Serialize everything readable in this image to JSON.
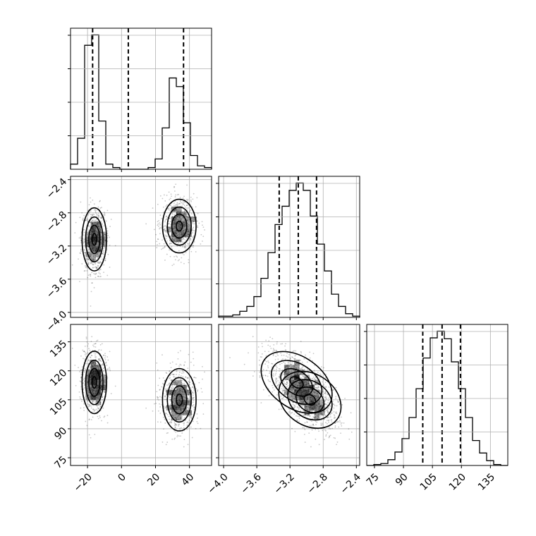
{
  "chart_data": {
    "type": "corner",
    "grid": true,
    "parameters": [
      {
        "ticks": [
          -20,
          0,
          20,
          40
        ],
        "tick_labels": [
          "−20",
          "0",
          "20",
          "40"
        ],
        "range": [
          -30,
          53
        ],
        "quantiles": [
          -17,
          4,
          36.5
        ]
      },
      {
        "ticks": [
          -4.0,
          -3.6,
          -3.2,
          -2.8,
          -2.4
        ],
        "tick_labels": [
          "−4.0",
          "−3.6",
          "−3.2",
          "−2.8",
          "−2.4"
        ],
        "range": [
          -4.06,
          -2.36
        ],
        "quantiles": [
          -3.33,
          -3.1,
          -2.88
        ]
      },
      {
        "ticks": [
          75,
          90,
          105,
          120,
          135
        ],
        "tick_labels": [
          "75",
          "90",
          "105",
          "120",
          "135"
        ],
        "range": [
          71,
          144
        ],
        "quantiles": [
          100,
          110,
          119.5
        ]
      }
    ],
    "histograms": [
      {
        "param": 0,
        "edges": [
          -30,
          -25.85,
          -21.7,
          -17.55,
          -13.4,
          -9.25,
          -5.1,
          -0.95,
          3.2,
          7.35,
          11.5,
          15.65,
          19.8,
          23.95,
          28.1,
          32.25,
          36.4,
          40.55,
          44.7,
          48.85,
          53
        ],
        "counts": [
          3,
          18,
          72,
          78,
          28,
          3,
          1,
          0,
          0,
          0,
          0,
          1,
          6,
          24,
          53,
          48,
          27,
          8,
          2,
          1
        ]
      },
      {
        "param": 1,
        "edges": [
          -4.06,
          -3.975,
          -3.89,
          -3.805,
          -3.72,
          -3.635,
          -3.55,
          -3.465,
          -3.38,
          -3.295,
          -3.21,
          -3.125,
          -3.04,
          -2.955,
          -2.87,
          -2.785,
          -2.7,
          -2.615,
          -2.53,
          -2.445,
          -2.36
        ],
        "counts": [
          1,
          1,
          2,
          5,
          9,
          17,
          32,
          53,
          76,
          91,
          104,
          110,
          104,
          83,
          60,
          38,
          19,
          9,
          3,
          1
        ]
      },
      {
        "param": 2,
        "edges": [
          71,
          74.65,
          78.3,
          81.95,
          85.6,
          89.25,
          92.9,
          96.55,
          100.2,
          103.85,
          107.5,
          111.15,
          114.8,
          118.45,
          122.1,
          125.75,
          129.4,
          133.05,
          136.7,
          140.35,
          144
        ],
        "counts": [
          0,
          1,
          2,
          6,
          14,
          28,
          50,
          80,
          112,
          133,
          140,
          132,
          108,
          80,
          50,
          26,
          13,
          5,
          1,
          0
        ]
      }
    ],
    "clusters": [
      {
        "means": [
          -16,
          -3.12,
          114
        ],
        "sds": [
          3.8,
          0.2,
          8.5
        ],
        "weight": 0.5
      },
      {
        "means": [
          34,
          -2.96,
          105
        ],
        "sds": [
          5.2,
          0.17,
          8.5
        ],
        "weight": 0.5
      }
    ]
  }
}
